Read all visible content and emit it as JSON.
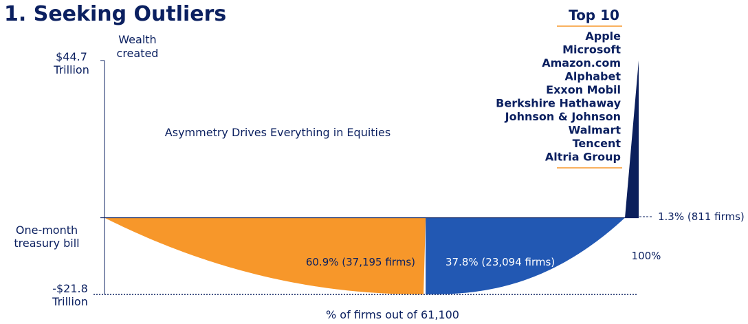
{
  "chart_data": {
    "type": "area",
    "title": "1. Seeking Outliers",
    "subtitle": "Asymmetry Drives Everything in Equities",
    "ylabel": [
      "Wealth",
      "created"
    ],
    "xlabel": "% of firms out of 61,100",
    "y_top_label": [
      "$44.7",
      "Trillion"
    ],
    "y_bottom_label": [
      "-$21.8",
      "Trillion"
    ],
    "baseline_label": [
      "One-month",
      "treasury bill"
    ],
    "x_end_label": "100%",
    "ylim": [
      -21.8,
      44.7
    ],
    "xlim": [
      0,
      100
    ],
    "segments": [
      {
        "label": "60.9% (37,195 firms)",
        "share": 60.9,
        "firms": 37195,
        "color": "#f7972a"
      },
      {
        "label": "37.8% (23,094 firms)",
        "share": 37.8,
        "firms": 23094,
        "color": "#2258b3"
      },
      {
        "label": "1.3% (811 firms)",
        "share": 1.3,
        "firms": 811,
        "color": "#0b1f5c"
      }
    ],
    "top10": {
      "title": "Top 10",
      "firms": [
        "Apple",
        "Microsoft",
        "Amazon.com",
        "Alphabet",
        "Exxon Mobil",
        "Berkshire Hathaway",
        "Johnson & Johnson",
        "Walmart",
        "Tencent",
        "Altria Group"
      ]
    },
    "colors": {
      "text": "#0b2060",
      "accent_line": "#f7972a"
    }
  }
}
